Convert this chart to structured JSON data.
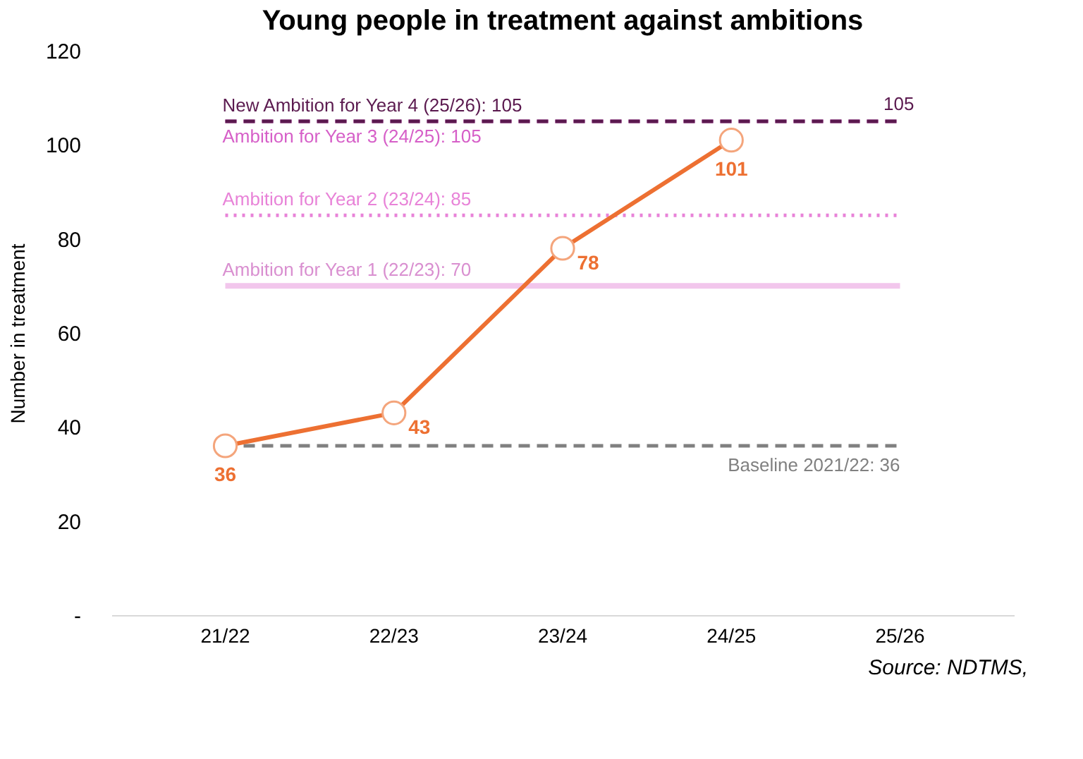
{
  "chart_data": {
    "type": "line",
    "title": "Young people in treatment against ambitions",
    "ylabel": "Number in treatment",
    "categories": [
      "21/22",
      "22/23",
      "23/24",
      "24/25",
      "25/26"
    ],
    "series": [
      {
        "color": "#ed7032",
        "values": [
          36,
          43,
          78,
          101,
          null
        ]
      }
    ],
    "ylim": [
      0,
      120
    ],
    "yticks": [
      {
        "value": 0,
        "label": "-"
      },
      20,
      40,
      60,
      80,
      100,
      120
    ],
    "ref_lines": [
      {
        "axis": "y",
        "value": 70,
        "label": "Ambition for Year 1 (22/23): 70",
        "color": "#f2c6ec",
        "line_style": "solid"
      },
      {
        "axis": "y",
        "value": 85,
        "label": "Ambition for Year 2 (23/24): 85",
        "color": "#e883d8",
        "line_style": "dotted"
      },
      {
        "axis": "y",
        "value": 105,
        "label": "Ambition for Year 3 (24/25): 105",
        "color": "#d65fc8",
        "line_style": "dashed"
      },
      {
        "axis": "y",
        "value": 105,
        "label": "New Ambition for Year 4 (25/26): 105",
        "color": "#5b1a4f",
        "line_style": "dashed"
      },
      {
        "axis": "y",
        "value": 36,
        "label": "Baseline 2021/22: 36",
        "color": "#808080",
        "line_style": "dashed"
      }
    ],
    "annotations": [
      {
        "text": "105",
        "x": "25/26",
        "y": 105
      },
      "Source: NDTMS,"
    ],
    "data_labels": true,
    "marker": "circle",
    "line_style": "solid",
    "grid": false
  }
}
